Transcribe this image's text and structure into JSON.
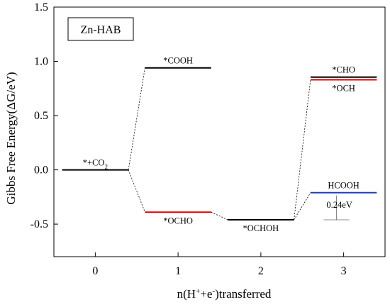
{
  "chart_data": {
    "type": "line",
    "title": "",
    "panel_label": "Zn-HAB",
    "xlabel": {
      "main": "n(H",
      "sup1": "+",
      "mid": "+e",
      "sup2": "-",
      "tail": ")transferred"
    },
    "ylabel": "Gibbs Free Energy(ΔG/eV)",
    "xlim": [
      -0.5,
      3.5
    ],
    "ylim": [
      -0.8,
      1.5
    ],
    "x_ticks": [
      0,
      1,
      2,
      3
    ],
    "y_ticks": [
      1.5,
      1.0,
      0.5,
      0.0,
      -0.5
    ],
    "x_tick_labels": [
      "0",
      "1",
      "2",
      "3"
    ],
    "y_tick_labels": [
      "1.5",
      "1.0",
      "0.5",
      "0.0",
      "-0.5"
    ],
    "levels": [
      {
        "id": "co2",
        "x": 0,
        "y": 0.0,
        "color": "#000000",
        "label": "*+CO",
        "label_sub": "2",
        "label_pos": "above"
      },
      {
        "id": "cooh",
        "x": 1,
        "y": 0.94,
        "color": "#000000",
        "label": "*COOH",
        "label_pos": "above"
      },
      {
        "id": "ocho",
        "x": 1,
        "y": -0.39,
        "color": "#e00000",
        "label": "*OCHO",
        "label_pos": "below"
      },
      {
        "id": "ochoh",
        "x": 2,
        "y": -0.46,
        "color": "#000000",
        "label": "*OCHOH",
        "label_pos": "below"
      },
      {
        "id": "cho",
        "x": 3,
        "y": 0.855,
        "color": "#000000",
        "label": "*CHO",
        "label_pos": "above"
      },
      {
        "id": "och",
        "x": 3,
        "y": 0.83,
        "color": "#e00000",
        "label": "*OCH",
        "label_pos": "below"
      },
      {
        "id": "hcooh",
        "x": 3,
        "y": -0.21,
        "color": "#1f3fbf",
        "label": "HCOOH",
        "label_pos": "above"
      }
    ],
    "connectors": [
      [
        "co2",
        "cooh"
      ],
      [
        "co2",
        "ocho"
      ],
      [
        "ocho",
        "ochoh"
      ],
      [
        "ochoh",
        "och"
      ],
      [
        "ochoh",
        "hcooh"
      ]
    ],
    "annotation": {
      "text": "0.24eV",
      "from": -0.21,
      "to": -0.46,
      "x": 3
    }
  }
}
